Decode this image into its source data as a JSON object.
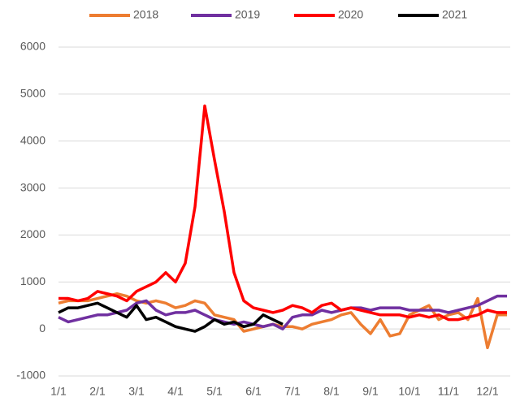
{
  "chart_data": {
    "type": "line",
    "categories": [
      "1/1",
      null,
      null,
      null,
      "2/1",
      null,
      null,
      null,
      "3/1",
      null,
      null,
      null,
      "4/1",
      null,
      null,
      null,
      "5/1",
      null,
      null,
      null,
      "6/1",
      null,
      null,
      null,
      "7/1",
      null,
      null,
      null,
      "8/1",
      null,
      null,
      null,
      "9/1",
      null,
      null,
      null,
      "10/1",
      null,
      null,
      null,
      "11/1",
      null,
      null,
      null,
      "12/1",
      null,
      null
    ],
    "series": [
      {
        "name": "2018",
        "color": "#ED7D31",
        "values": [
          550,
          600,
          600,
          600,
          650,
          700,
          750,
          700,
          600,
          550,
          600,
          550,
          450,
          500,
          600,
          550,
          300,
          250,
          200,
          -50,
          0,
          50,
          100,
          50,
          50,
          0,
          100,
          150,
          200,
          300,
          350,
          100,
          -100,
          200,
          -150,
          -100,
          300,
          400,
          500,
          200,
          300,
          350,
          200,
          650,
          -400,
          300,
          300
        ]
      },
      {
        "name": "2019",
        "color": "#7030A0",
        "values": [
          250,
          150,
          200,
          250,
          300,
          300,
          350,
          400,
          550,
          600,
          400,
          300,
          350,
          350,
          400,
          300,
          200,
          150,
          100,
          150,
          100,
          50,
          100,
          0,
          250,
          300,
          300,
          400,
          350,
          400,
          450,
          450,
          400,
          450,
          450,
          450,
          400,
          400,
          400,
          400,
          350,
          400,
          450,
          500,
          600,
          700,
          700
        ]
      },
      {
        "name": "2020",
        "color": "#FF0000",
        "values": [
          650,
          650,
          600,
          650,
          800,
          750,
          700,
          600,
          800,
          900,
          1000,
          1200,
          1000,
          1400,
          2600,
          4750,
          3600,
          2500,
          1200,
          600,
          450,
          400,
          350,
          400,
          500,
          450,
          350,
          500,
          550,
          400,
          450,
          400,
          350,
          300,
          300,
          300,
          250,
          300,
          250,
          300,
          200,
          200,
          250,
          300,
          400,
          350,
          350
        ]
      },
      {
        "name": "2021",
        "color": "#000000",
        "values": [
          350,
          450,
          450,
          500,
          550,
          450,
          350,
          250,
          500,
          200,
          250,
          150,
          50,
          0,
          -50,
          50,
          200,
          100,
          150,
          50,
          100,
          300,
          200,
          100,
          null,
          null,
          null,
          null,
          null,
          null,
          null,
          null,
          null,
          null,
          null,
          null,
          null,
          null,
          null,
          null,
          null,
          null,
          null,
          null,
          null,
          null,
          null
        ]
      }
    ],
    "ylim": [
      -1000,
      6000
    ],
    "yticks": [
      -1000,
      0,
      1000,
      2000,
      3000,
      4000,
      5000,
      6000
    ],
    "grid": true
  }
}
